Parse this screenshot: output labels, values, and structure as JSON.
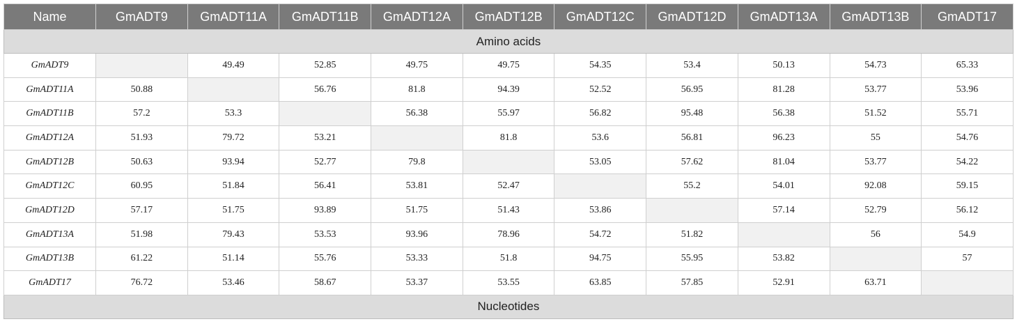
{
  "table": {
    "columns": [
      "Name",
      "GmADT9",
      "GmADT11A",
      "GmADT11B",
      "GmADT12A",
      "GmADT12B",
      "GmADT12C",
      "GmADT12D",
      "GmADT13A",
      "GmADT13B",
      "GmADT17"
    ],
    "section_amino": "Amino acids",
    "section_nucleotides": "Nucleotides",
    "rows": [
      {
        "name": "GmADT9",
        "values": [
          "",
          "49.49",
          "52.85",
          "49.75",
          "49.75",
          "54.35",
          "53.4",
          "50.13",
          "54.73",
          "65.33"
        ]
      },
      {
        "name": "GmADT11A",
        "values": [
          "50.88",
          "",
          "56.76",
          "81.8",
          "94.39",
          "52.52",
          "56.95",
          "81.28",
          "53.77",
          "53.96"
        ]
      },
      {
        "name": "GmADT11B",
        "values": [
          "57.2",
          "53.3",
          "",
          "56.38",
          "55.97",
          "56.82",
          "95.48",
          "56.38",
          "51.52",
          "55.71"
        ]
      },
      {
        "name": "GmADT12A",
        "values": [
          "51.93",
          "79.72",
          "53.21",
          "",
          "81.8",
          "53.6",
          "56.81",
          "96.23",
          "55",
          "54.76"
        ]
      },
      {
        "name": "GmADT12B",
        "values": [
          "50.63",
          "93.94",
          "52.77",
          "79.8",
          "",
          "53.05",
          "57.62",
          "81.04",
          "53.77",
          "54.22"
        ]
      },
      {
        "name": "GmADT12C",
        "values": [
          "60.95",
          "51.84",
          "56.41",
          "53.81",
          "52.47",
          "",
          "55.2",
          "54.01",
          "92.08",
          "59.15"
        ]
      },
      {
        "name": "GmADT12D",
        "values": [
          "57.17",
          "51.75",
          "93.89",
          "51.75",
          "51.43",
          "53.86",
          "",
          "57.14",
          "52.79",
          "56.12"
        ]
      },
      {
        "name": "GmADT13A",
        "values": [
          "51.98",
          "79.43",
          "53.53",
          "93.96",
          "78.96",
          "54.72",
          "51.82",
          "",
          "56",
          "54.9"
        ]
      },
      {
        "name": "GmADT13B",
        "values": [
          "61.22",
          "51.14",
          "55.76",
          "53.33",
          "51.8",
          "94.75",
          "55.95",
          "53.82",
          "",
          "57"
        ]
      },
      {
        "name": "GmADT17",
        "values": [
          "76.72",
          "53.46",
          "58.67",
          "53.37",
          "53.55",
          "63.85",
          "57.85",
          "52.91",
          "63.71",
          ""
        ]
      }
    ]
  },
  "colors": {
    "header_bg": "#7a7a7a",
    "section_bg": "#dcdcdc",
    "diagonal_bg": "#f1f1f1"
  }
}
